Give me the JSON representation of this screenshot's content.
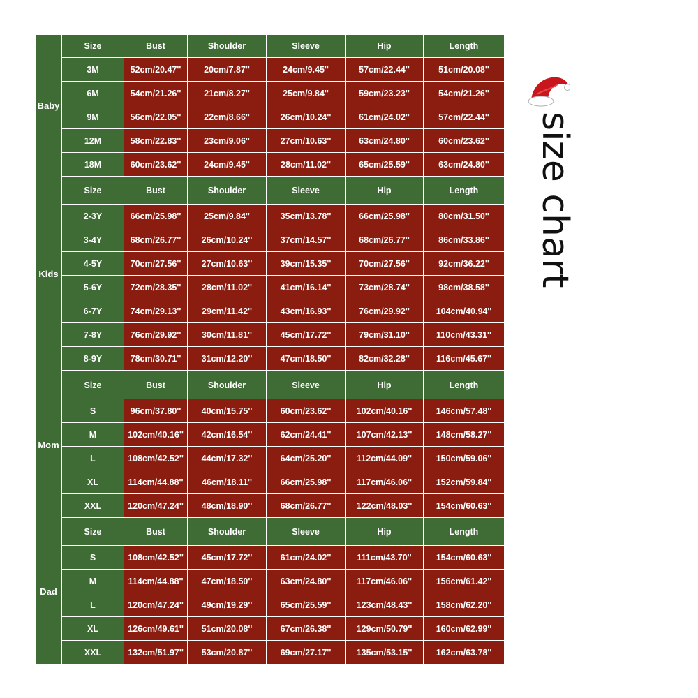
{
  "title": "size chart",
  "colors": {
    "header_green": "#3f6b35",
    "value_red": "#8b1c10",
    "text": "#ffffff"
  },
  "headers": [
    "Size",
    "Bust",
    "Shoulder",
    "Sleeve",
    "Hip",
    "Length"
  ],
  "groups": [
    {
      "label": "Baby",
      "rows": [
        [
          "3M",
          "52cm/20.47''",
          "20cm/7.87''",
          "24cm/9.45''",
          "57cm/22.44''",
          "51cm/20.08''"
        ],
        [
          "6M",
          "54cm/21.26''",
          "21cm/8.27''",
          "25cm/9.84''",
          "59cm/23.23''",
          "54cm/21.26''"
        ],
        [
          "9M",
          "56cm/22.05''",
          "22cm/8.66''",
          "26cm/10.24''",
          "61cm/24.02''",
          "57cm/22.44''"
        ],
        [
          "12M",
          "58cm/22.83''",
          "23cm/9.06''",
          "27cm/10.63''",
          "63cm/24.80''",
          "60cm/23.62''"
        ],
        [
          "18M",
          "60cm/23.62''",
          "24cm/9.45''",
          "28cm/11.02''",
          "65cm/25.59''",
          "63cm/24.80''"
        ]
      ]
    },
    {
      "label": "Kids",
      "rows": [
        [
          "2-3Y",
          "66cm/25.98''",
          "25cm/9.84''",
          "35cm/13.78''",
          "66cm/25.98''",
          "80cm/31.50''"
        ],
        [
          "3-4Y",
          "68cm/26.77''",
          "26cm/10.24''",
          "37cm/14.57''",
          "68cm/26.77''",
          "86cm/33.86''"
        ],
        [
          "4-5Y",
          "70cm/27.56''",
          "27cm/10.63''",
          "39cm/15.35''",
          "70cm/27.56''",
          "92cm/36.22''"
        ],
        [
          "5-6Y",
          "72cm/28.35''",
          "28cm/11.02''",
          "41cm/16.14''",
          "73cm/28.74''",
          "98cm/38.58''"
        ],
        [
          "6-7Y",
          "74cm/29.13''",
          "29cm/11.42''",
          "43cm/16.93''",
          "76cm/29.92''",
          "104cm/40.94''"
        ],
        [
          "7-8Y",
          "76cm/29.92''",
          "30cm/11.81''",
          "45cm/17.72''",
          "79cm/31.10''",
          "110cm/43.31''"
        ],
        [
          "8-9Y",
          "78cm/30.71''",
          "31cm/12.20''",
          "47cm/18.50''",
          "82cm/32.28''",
          "116cm/45.67''"
        ]
      ]
    },
    {
      "label": "Mom",
      "rows": [
        [
          "S",
          "96cm/37.80''",
          "40cm/15.75''",
          "60cm/23.62''",
          "102cm/40.16''",
          "146cm/57.48''"
        ],
        [
          "M",
          "102cm/40.16''",
          "42cm/16.54''",
          "62cm/24.41''",
          "107cm/42.13''",
          "148cm/58.27''"
        ],
        [
          "L",
          "108cm/42.52''",
          "44cm/17.32''",
          "64cm/25.20''",
          "112cm/44.09''",
          "150cm/59.06''"
        ],
        [
          "XL",
          "114cm/44.88''",
          "46cm/18.11''",
          "66cm/25.98''",
          "117cm/46.06''",
          "152cm/59.84''"
        ],
        [
          "XXL",
          "120cm/47.24''",
          "48cm/18.90''",
          "68cm/26.77''",
          "122cm/48.03''",
          "154cm/60.63''"
        ]
      ]
    },
    {
      "label": "Dad",
      "rows": [
        [
          "S",
          "108cm/42.52''",
          "45cm/17.72''",
          "61cm/24.02''",
          "111cm/43.70''",
          "154cm/60.63''"
        ],
        [
          "M",
          "114cm/44.88''",
          "47cm/18.50''",
          "63cm/24.80''",
          "117cm/46.06''",
          "156cm/61.42''"
        ],
        [
          "L",
          "120cm/47.24''",
          "49cm/19.29''",
          "65cm/25.59''",
          "123cm/48.43''",
          "158cm/62.20''"
        ],
        [
          "XL",
          "126cm/49.61''",
          "51cm/20.08''",
          "67cm/26.38''",
          "129cm/50.79''",
          "160cm/62.99''"
        ],
        [
          "XXL",
          "132cm/51.97''",
          "53cm/20.87''",
          "69cm/27.17''",
          "135cm/53.15''",
          "162cm/63.78''"
        ]
      ]
    }
  ]
}
